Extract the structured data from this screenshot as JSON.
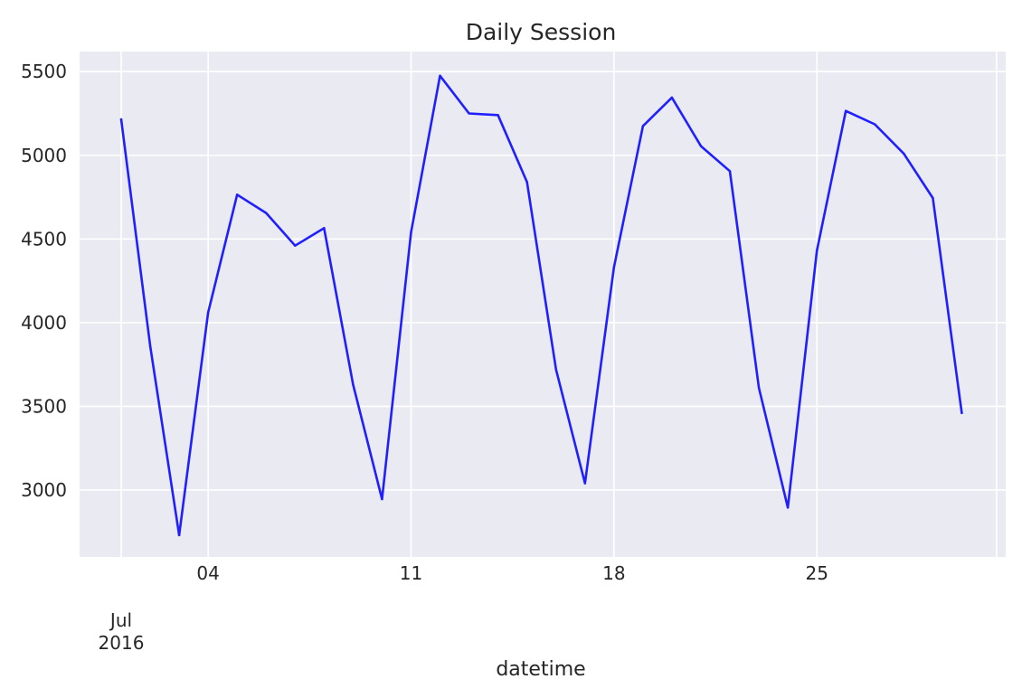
{
  "chart_data": {
    "type": "line",
    "title": "Daily Session",
    "xlabel": "datetime",
    "ylabel": "",
    "x_start_date": "2016-07-01",
    "x": [
      "2016-07-01",
      "2016-07-02",
      "2016-07-03",
      "2016-07-04",
      "2016-07-05",
      "2016-07-06",
      "2016-07-07",
      "2016-07-08",
      "2016-07-09",
      "2016-07-10",
      "2016-07-11",
      "2016-07-12",
      "2016-07-13",
      "2016-07-14",
      "2016-07-15",
      "2016-07-16",
      "2016-07-17",
      "2016-07-18",
      "2016-07-19",
      "2016-07-20",
      "2016-07-21",
      "2016-07-22",
      "2016-07-23",
      "2016-07-24",
      "2016-07-25",
      "2016-07-26",
      "2016-07-27",
      "2016-07-28",
      "2016-07-29",
      "2016-07-30"
    ],
    "series": [
      {
        "values": [
          5215,
          3860,
          2730,
          4060,
          4765,
          4655,
          4460,
          4565,
          3630,
          2945,
          4540,
          5475,
          5250,
          5240,
          4840,
          3720,
          3040,
          4330,
          5175,
          5345,
          5055,
          4905,
          3610,
          2895,
          4430,
          5265,
          5185,
          5010,
          4745,
          3460
        ],
        "color": "#1f1fff"
      }
    ],
    "ylim": [
      2600,
      5620
    ],
    "yticks": [
      3000,
      3500,
      4000,
      4500,
      5000,
      5500
    ],
    "xticks": [
      {
        "date": "2016-07-01",
        "label": "Jul",
        "sublabel": "2016"
      },
      {
        "date": "2016-07-04",
        "label": "04"
      },
      {
        "date": "2016-07-11",
        "label": "11"
      },
      {
        "date": "2016-07-18",
        "label": "18"
      },
      {
        "date": "2016-07-25",
        "label": "25"
      }
    ],
    "grid": true,
    "background": "#eaeaf2"
  }
}
